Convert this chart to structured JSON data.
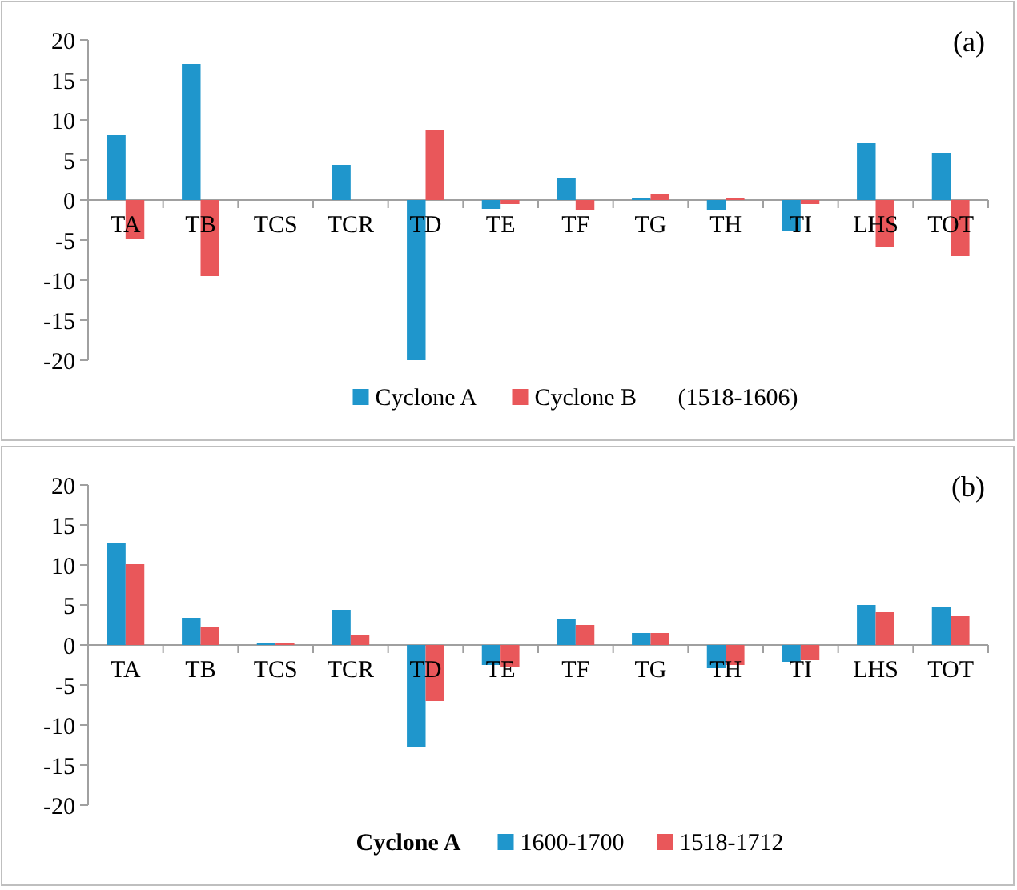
{
  "chart_data": [
    {
      "type": "bar",
      "categories": [
        "TA",
        "TB",
        "TCS",
        "TCR",
        "TD",
        "TE",
        "TF",
        "TG",
        "TH",
        "TI",
        "LHS",
        "TOT"
      ],
      "series": [
        {
          "name": "Cyclone A",
          "color": "#1f96cc",
          "values": [
            8.1,
            17,
            0,
            4.4,
            -20,
            -1.1,
            2.8,
            0.2,
            -1.3,
            -3.8,
            7.1,
            5.9
          ]
        },
        {
          "name": "Cyclone B",
          "color": "#e9575a",
          "values": [
            -4.8,
            -9.5,
            0,
            0,
            8.8,
            -0.5,
            -1.3,
            0.8,
            0.3,
            -0.5,
            -5.9,
            -7
          ]
        }
      ],
      "ylim": [
        -20,
        20
      ],
      "yticks": [
        -20,
        -15,
        -10,
        -5,
        0,
        5,
        10,
        15,
        20
      ],
      "grid": false,
      "legend": "bottom",
      "annotations": [
        "(a)",
        "(1518-1606)"
      ]
    },
    {
      "type": "bar",
      "categories": [
        "TA",
        "TB",
        "TCS",
        "TCR",
        "TD",
        "TE",
        "TF",
        "TG",
        "TH",
        "TI",
        "LHS",
        "TOT"
      ],
      "series": [
        {
          "name": "1600-1700",
          "color": "#1f96cc",
          "values": [
            12.7,
            3.4,
            0.2,
            4.4,
            -12.7,
            -2.5,
            3.3,
            1.5,
            -2.9,
            -2.1,
            5,
            4.8
          ]
        },
        {
          "name": "1518-1712",
          "color": "#e9575a",
          "values": [
            10.1,
            2.2,
            0.2,
            1.2,
            -7,
            -2.8,
            2.5,
            1.5,
            -2.5,
            -1.9,
            4.1,
            3.6
          ]
        }
      ],
      "ylim": [
        -20,
        20
      ],
      "yticks": [
        -20,
        -15,
        -10,
        -5,
        0,
        5,
        10,
        15,
        20
      ],
      "grid": false,
      "legend": "bottom",
      "legend_title": "Cyclone A",
      "annotations": [
        "(b)"
      ]
    }
  ]
}
